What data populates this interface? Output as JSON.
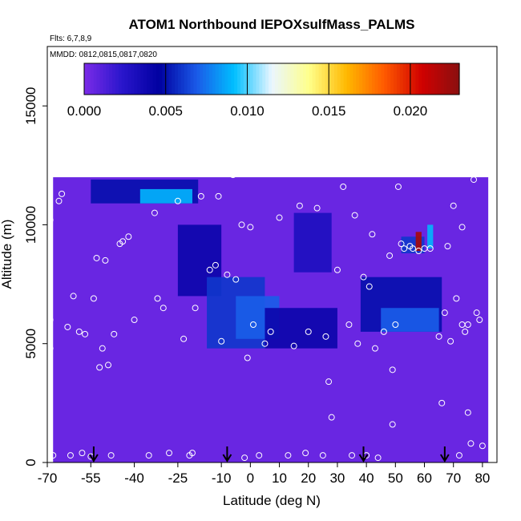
{
  "chart_data": {
    "type": "heatmap",
    "title": "ATOM1 Northbound IEPOXsulfMass_PALMS",
    "flights_note": "Flts: 6,7,8,9",
    "dates_note": "MMDD: 0812,0815,0817,0820",
    "xlabel": "Latitude (deg N)",
    "ylabel": "Altitude (m)",
    "xlim": [
      -70,
      85
    ],
    "ylim": [
      0,
      17500
    ],
    "x_ticks": [
      {
        "v": -70,
        "label": "-70"
      },
      {
        "v": -55,
        "label": "-55"
      },
      {
        "v": -40,
        "label": "-40"
      },
      {
        "v": -25,
        "label": "-25"
      },
      {
        "v": -10,
        "label": "-10"
      },
      {
        "v": 0,
        "label": "0"
      },
      {
        "v": 10,
        "label": "10"
      },
      {
        "v": 20,
        "label": "20"
      },
      {
        "v": 30,
        "label": "30"
      },
      {
        "v": 40,
        "label": "40"
      },
      {
        "v": 50,
        "label": "50"
      },
      {
        "v": 60,
        "label": "60"
      },
      {
        "v": 70,
        "label": "70"
      },
      {
        "v": 80,
        "label": "80"
      }
    ],
    "y_ticks": [
      {
        "v": 0,
        "label": "0"
      },
      {
        "v": 5000,
        "label": "5000"
      },
      {
        "v": 10000,
        "label": "10000"
      },
      {
        "v": 15000,
        "label": "15000"
      }
    ],
    "colorbar": {
      "min": 0.0,
      "max": 0.023,
      "ticks": [
        {
          "v": 0.0,
          "label": "0.000"
        },
        {
          "v": 0.005,
          "label": "0.005"
        },
        {
          "v": 0.01,
          "label": "0.010"
        },
        {
          "v": 0.015,
          "label": "0.015"
        },
        {
          "v": 0.02,
          "label": "0.020"
        }
      ],
      "colors": [
        "#7b2be8",
        "#2a16cc",
        "#0000a0",
        "#1a5ae8",
        "#00bfff",
        "#eaf6ff",
        "#ffff8a",
        "#ffb800",
        "#ff5a00",
        "#d00000",
        "#8a1010"
      ]
    },
    "background_value": 0.0005,
    "field_extent": {
      "lat": [
        -68,
        82
      ],
      "alt": [
        0,
        12000
      ]
    },
    "high_regions": [
      {
        "lat": [
          -55,
          -18
        ],
        "alt": [
          10900,
          11900
        ],
        "value": 0.005
      },
      {
        "lat": [
          -38,
          -20
        ],
        "alt": [
          10900,
          11500
        ],
        "value": 0.009
      },
      {
        "lat": [
          -25,
          -10
        ],
        "alt": [
          7000,
          10000
        ],
        "value": 0.004
      },
      {
        "lat": [
          -15,
          5
        ],
        "alt": [
          4800,
          7800
        ],
        "value": 0.006
      },
      {
        "lat": [
          -5,
          10
        ],
        "alt": [
          5200,
          7000
        ],
        "value": 0.007
      },
      {
        "lat": [
          5,
          30
        ],
        "alt": [
          4800,
          6500
        ],
        "value": 0.004
      },
      {
        "lat": [
          15,
          28
        ],
        "alt": [
          8000,
          10500
        ],
        "value": 0.003
      },
      {
        "lat": [
          38,
          66
        ],
        "alt": [
          5500,
          7800
        ],
        "value": 0.005
      },
      {
        "lat": [
          45,
          65
        ],
        "alt": [
          5500,
          6500
        ],
        "value": 0.007
      },
      {
        "lat": [
          52,
          60
        ],
        "alt": [
          8800,
          9500
        ],
        "value": 0.006
      },
      {
        "lat": [
          57,
          59
        ],
        "alt": [
          8900,
          9700
        ],
        "value": 0.022
      },
      {
        "lat": [
          61,
          63
        ],
        "alt": [
          9000,
          10000
        ],
        "value": 0.009
      }
    ],
    "flight_points": [
      {
        "lat": -69,
        "alt": 10200
      },
      {
        "lat": -69,
        "alt": 6000
      },
      {
        "lat": -69,
        "alt": 4800
      },
      {
        "lat": -68,
        "alt": 300
      },
      {
        "lat": -66,
        "alt": 11000
      },
      {
        "lat": -65,
        "alt": 11300
      },
      {
        "lat": -63,
        "alt": 5700
      },
      {
        "lat": -62,
        "alt": 300
      },
      {
        "lat": -61,
        "alt": 7000
      },
      {
        "lat": -59,
        "alt": 5500
      },
      {
        "lat": -58,
        "alt": 400
      },
      {
        "lat": -57,
        "alt": 5400
      },
      {
        "lat": -55,
        "alt": 250
      },
      {
        "lat": -54,
        "alt": 6900
      },
      {
        "lat": -53,
        "alt": 8600
      },
      {
        "lat": -52,
        "alt": 4000
      },
      {
        "lat": -51,
        "alt": 4800
      },
      {
        "lat": -50,
        "alt": 8500
      },
      {
        "lat": -49,
        "alt": 4100
      },
      {
        "lat": -48,
        "alt": 300
      },
      {
        "lat": -47,
        "alt": 5400
      },
      {
        "lat": -45,
        "alt": 9200
      },
      {
        "lat": -44,
        "alt": 9300
      },
      {
        "lat": -42,
        "alt": 9500
      },
      {
        "lat": -40,
        "alt": 6000
      },
      {
        "lat": -35,
        "alt": 300
      },
      {
        "lat": -33,
        "alt": 10500
      },
      {
        "lat": -32,
        "alt": 6900
      },
      {
        "lat": -30,
        "alt": 6500
      },
      {
        "lat": -28,
        "alt": 400
      },
      {
        "lat": -25,
        "alt": 11000
      },
      {
        "lat": -23,
        "alt": 5200
      },
      {
        "lat": -21,
        "alt": 300
      },
      {
        "lat": -20,
        "alt": 400
      },
      {
        "lat": -19,
        "alt": 6500
      },
      {
        "lat": -17,
        "alt": 11200
      },
      {
        "lat": -14,
        "alt": 8100
      },
      {
        "lat": -12,
        "alt": 8300
      },
      {
        "lat": -11,
        "alt": 11200
      },
      {
        "lat": -10,
        "alt": 5100
      },
      {
        "lat": -8,
        "alt": 7900
      },
      {
        "lat": -6,
        "alt": 12100
      },
      {
        "lat": -5,
        "alt": 7700
      },
      {
        "lat": -3,
        "alt": 10000
      },
      {
        "lat": -2,
        "alt": 200
      },
      {
        "lat": -1,
        "alt": 4400
      },
      {
        "lat": 0,
        "alt": 9900
      },
      {
        "lat": 1,
        "alt": 5800
      },
      {
        "lat": 3,
        "alt": 300
      },
      {
        "lat": 5,
        "alt": 5000
      },
      {
        "lat": 7,
        "alt": 5500
      },
      {
        "lat": 10,
        "alt": 10300
      },
      {
        "lat": 13,
        "alt": 300
      },
      {
        "lat": 15,
        "alt": 4900
      },
      {
        "lat": 17,
        "alt": 10800
      },
      {
        "lat": 19,
        "alt": 400
      },
      {
        "lat": 20,
        "alt": 5500
      },
      {
        "lat": 23,
        "alt": 10700
      },
      {
        "lat": 25,
        "alt": 300
      },
      {
        "lat": 26,
        "alt": 5300
      },
      {
        "lat": 27,
        "alt": 3400
      },
      {
        "lat": 28,
        "alt": 1900
      },
      {
        "lat": 30,
        "alt": 8100
      },
      {
        "lat": 32,
        "alt": 11600
      },
      {
        "lat": 34,
        "alt": 5800
      },
      {
        "lat": 35,
        "alt": 300
      },
      {
        "lat": 36,
        "alt": 10400
      },
      {
        "lat": 37,
        "alt": 5000
      },
      {
        "lat": 39,
        "alt": 7800
      },
      {
        "lat": 40,
        "alt": 300
      },
      {
        "lat": 41,
        "alt": 7400
      },
      {
        "lat": 42,
        "alt": 9600
      },
      {
        "lat": 43,
        "alt": 4800
      },
      {
        "lat": 44,
        "alt": 200
      },
      {
        "lat": 46,
        "alt": 5500
      },
      {
        "lat": 48,
        "alt": 8700
      },
      {
        "lat": 49,
        "alt": 3900
      },
      {
        "lat": 49,
        "alt": 1600
      },
      {
        "lat": 50,
        "alt": 5800
      },
      {
        "lat": 51,
        "alt": 11600
      },
      {
        "lat": 52,
        "alt": 9200
      },
      {
        "lat": 53,
        "alt": 9000
      },
      {
        "lat": 55,
        "alt": 9100
      },
      {
        "lat": 56,
        "alt": 9000
      },
      {
        "lat": 58,
        "alt": 8900
      },
      {
        "lat": 60,
        "alt": 9000
      },
      {
        "lat": 62,
        "alt": 9000
      },
      {
        "lat": 65,
        "alt": 5300
      },
      {
        "lat": 66,
        "alt": 2500
      },
      {
        "lat": 67,
        "alt": 6300
      },
      {
        "lat": 68,
        "alt": 9100
      },
      {
        "lat": 69,
        "alt": 5100
      },
      {
        "lat": 70,
        "alt": 10800
      },
      {
        "lat": 71,
        "alt": 6900
      },
      {
        "lat": 72,
        "alt": 300
      },
      {
        "lat": 73,
        "alt": 5800
      },
      {
        "lat": 73,
        "alt": 9900
      },
      {
        "lat": 74,
        "alt": 5500
      },
      {
        "lat": 75,
        "alt": 2100
      },
      {
        "lat": 75,
        "alt": 5800
      },
      {
        "lat": 76,
        "alt": 800
      },
      {
        "lat": 77,
        "alt": 11900
      },
      {
        "lat": 78,
        "alt": 6300
      },
      {
        "lat": 79,
        "alt": 6000
      },
      {
        "lat": 80,
        "alt": 700
      }
    ],
    "arrow_latitudes": [
      -54,
      -8,
      39,
      67
    ],
    "legend_position": "top-inside",
    "grid": false
  }
}
